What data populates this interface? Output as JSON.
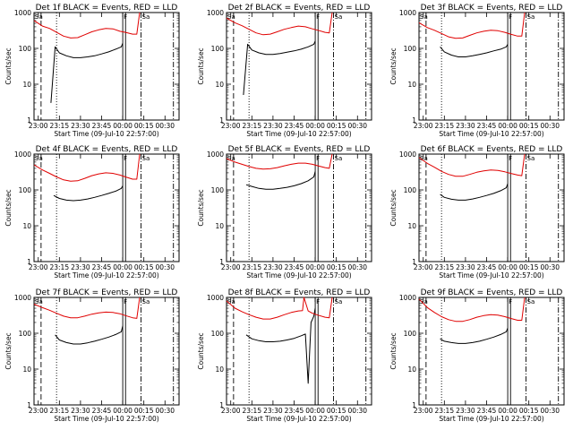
{
  "figure": {
    "background": "#ffffff",
    "event_color": "#000000",
    "lld_color": "#e00000"
  },
  "chart_data": [
    {
      "type": "line",
      "title": "Det 1f BLACK = Events, RED = LLD",
      "xlabel": "Start Time (09-Jul-10 22:57:00)",
      "ylabel": "Counts/sec",
      "x_ticks": [
        "23:00",
        "23:15",
        "23:30",
        "23:45",
        "00:00",
        "00:15",
        "00:30"
      ],
      "y_ticks": [
        "1",
        "10",
        "100",
        "1000"
      ],
      "y_scale": "log",
      "ylim": [
        1,
        1000
      ],
      "markers": [
        "Sa",
        "F",
        "Sa"
      ],
      "series": [
        {
          "name": "Events",
          "color": "#000000",
          "x": [
            "23:09",
            "23:12",
            "23:15",
            "23:20",
            "23:25",
            "23:30",
            "23:35",
            "23:40",
            "23:45",
            "23:50",
            "23:55",
            "23:59",
            "00:00"
          ],
          "values": [
            3,
            110,
            75,
            62,
            55,
            55,
            58,
            62,
            70,
            80,
            95,
            110,
            140
          ]
        },
        {
          "name": "LLD",
          "color": "#e00000",
          "x": [
            "22:57",
            "23:03",
            "23:08",
            "23:13",
            "23:18",
            "23:23",
            "23:28",
            "23:33",
            "23:38",
            "23:43",
            "23:48",
            "23:53",
            "23:58",
            "00:02",
            "00:07",
            "00:10",
            "00:12"
          ],
          "values": [
            600,
            420,
            360,
            280,
            220,
            195,
            200,
            240,
            290,
            330,
            360,
            350,
            300,
            280,
            250,
            250,
            1000
          ]
        }
      ]
    },
    {
      "type": "line",
      "title": "Det 2f BLACK = Events, RED = LLD",
      "xlabel": "Start Time (09-Jul-10 22:57:00)",
      "ylabel": "Counts/sec",
      "x_ticks": [
        "23:00",
        "23:15",
        "23:30",
        "23:45",
        "00:00",
        "00:15",
        "00:30"
      ],
      "y_ticks": [
        "1",
        "10",
        "100",
        "1000"
      ],
      "y_scale": "log",
      "ylim": [
        1,
        1000
      ],
      "markers": [
        "Sa",
        "F",
        "Sa"
      ],
      "series": [
        {
          "name": "Events",
          "color": "#000000",
          "x": [
            "23:09",
            "23:12",
            "23:15",
            "23:20",
            "23:25",
            "23:30",
            "23:35",
            "23:40",
            "23:45",
            "23:50",
            "23:55",
            "23:59",
            "00:00"
          ],
          "values": [
            5,
            130,
            90,
            75,
            68,
            68,
            72,
            78,
            85,
            95,
            110,
            130,
            160
          ]
        },
        {
          "name": "LLD",
          "color": "#e00000",
          "x": [
            "22:57",
            "23:03",
            "23:08",
            "23:13",
            "23:18",
            "23:23",
            "23:28",
            "23:33",
            "23:38",
            "23:43",
            "23:48",
            "23:53",
            "23:58",
            "00:02",
            "00:07",
            "00:10",
            "00:12"
          ],
          "values": [
            700,
            520,
            430,
            340,
            270,
            240,
            250,
            290,
            340,
            380,
            420,
            400,
            350,
            320,
            280,
            270,
            1000
          ]
        }
      ]
    },
    {
      "type": "line",
      "title": "Det 3f BLACK = Events, RED = LLD",
      "xlabel": "Start Time (09-Jul-10 22:57:00)",
      "ylabel": "Counts/sec",
      "x_ticks": [
        "23:00",
        "23:15",
        "23:30",
        "23:45",
        "00:00",
        "00:15",
        "00:30"
      ],
      "y_ticks": [
        "1",
        "10",
        "100",
        "1000"
      ],
      "y_scale": "log",
      "ylim": [
        1,
        1000
      ],
      "markers": [
        "Sa",
        "F",
        "Sa"
      ],
      "series": [
        {
          "name": "Events",
          "color": "#000000",
          "x": [
            "23:12",
            "23:15",
            "23:20",
            "23:25",
            "23:30",
            "23:35",
            "23:40",
            "23:45",
            "23:50",
            "23:55",
            "23:59",
            "00:00"
          ],
          "values": [
            110,
            80,
            65,
            58,
            58,
            62,
            68,
            75,
            85,
            95,
            110,
            130
          ]
        },
        {
          "name": "LLD",
          "color": "#e00000",
          "x": [
            "22:57",
            "23:03",
            "23:08",
            "23:13",
            "23:18",
            "23:23",
            "23:28",
            "23:33",
            "23:38",
            "23:43",
            "23:48",
            "23:53",
            "23:58",
            "00:02",
            "00:07",
            "00:10",
            "00:12"
          ],
          "values": [
            520,
            380,
            320,
            260,
            210,
            190,
            195,
            230,
            270,
            300,
            320,
            310,
            280,
            250,
            220,
            220,
            1000
          ]
        }
      ]
    },
    {
      "type": "line",
      "title": "Det 4f BLACK = Events, RED = LLD",
      "xlabel": "Start Time (09-Jul-10 22:57:00)",
      "ylabel": "Counts/sec",
      "x_ticks": [
        "23:00",
        "23:15",
        "23:30",
        "23:45",
        "00:00",
        "00:15",
        "00:30"
      ],
      "y_ticks": [
        "1",
        "10",
        "100",
        "1000"
      ],
      "y_scale": "log",
      "ylim": [
        1,
        1000
      ],
      "markers": [
        "Sa",
        "F",
        "Sa"
      ],
      "series": [
        {
          "name": "Events",
          "color": "#000000",
          "x": [
            "23:11",
            "23:15",
            "23:20",
            "23:25",
            "23:30",
            "23:35",
            "23:40",
            "23:45",
            "23:50",
            "23:55",
            "23:59",
            "00:00"
          ],
          "values": [
            70,
            58,
            52,
            50,
            52,
            56,
            62,
            70,
            80,
            92,
            110,
            130
          ]
        },
        {
          "name": "LLD",
          "color": "#e00000",
          "x": [
            "22:57",
            "23:03",
            "23:08",
            "23:13",
            "23:18",
            "23:23",
            "23:28",
            "23:33",
            "23:38",
            "23:43",
            "23:48",
            "23:53",
            "23:58",
            "00:02",
            "00:07",
            "00:10",
            "00:12"
          ],
          "values": [
            500,
            360,
            290,
            230,
            190,
            175,
            180,
            210,
            250,
            280,
            300,
            290,
            260,
            230,
            200,
            200,
            1000
          ]
        }
      ]
    },
    {
      "type": "line",
      "title": "Det 5f BLACK = Events, RED = LLD",
      "xlabel": "Start Time (09-Jul-10 22:57:00)",
      "ylabel": "Counts/sec",
      "x_ticks": [
        "23:00",
        "23:15",
        "23:30",
        "23:45",
        "00:00",
        "00:15",
        "00:30"
      ],
      "y_ticks": [
        "1",
        "10",
        "100",
        "1000"
      ],
      "y_scale": "log",
      "ylim": [
        1,
        1000
      ],
      "markers": [
        "Sa",
        "F",
        "Sa"
      ],
      "series": [
        {
          "name": "Events",
          "color": "#000000",
          "x": [
            "23:11",
            "23:15",
            "23:20",
            "23:25",
            "23:30",
            "23:35",
            "23:40",
            "23:45",
            "23:50",
            "23:55",
            "23:59",
            "00:00"
          ],
          "values": [
            140,
            125,
            110,
            105,
            105,
            110,
            118,
            130,
            150,
            180,
            230,
            330
          ]
        },
        {
          "name": "LLD",
          "color": "#e00000",
          "x": [
            "22:57",
            "23:03",
            "23:08",
            "23:13",
            "23:18",
            "23:23",
            "23:28",
            "23:33",
            "23:38",
            "23:43",
            "23:48",
            "23:53",
            "23:58",
            "00:02",
            "00:07",
            "00:10",
            "00:12"
          ],
          "values": [
            750,
            600,
            520,
            450,
            400,
            380,
            390,
            420,
            470,
            520,
            560,
            560,
            520,
            470,
            420,
            400,
            1000
          ]
        }
      ]
    },
    {
      "type": "line",
      "title": "Det 6f BLACK = Events, RED = LLD",
      "xlabel": "Start Time (09-Jul-10 22:57:00)",
      "ylabel": "Counts/sec",
      "x_ticks": [
        "23:00",
        "23:15",
        "23:30",
        "23:45",
        "00:00",
        "00:15",
        "00:30"
      ],
      "y_ticks": [
        "1",
        "10",
        "100",
        "1000"
      ],
      "y_scale": "log",
      "ylim": [
        1,
        1000
      ],
      "markers": [
        "Sa",
        "F",
        "Sa"
      ],
      "series": [
        {
          "name": "Events",
          "color": "#000000",
          "x": [
            "23:12",
            "23:15",
            "23:20",
            "23:25",
            "23:30",
            "23:35",
            "23:40",
            "23:45",
            "23:50",
            "23:55",
            "23:59",
            "00:00"
          ],
          "values": [
            75,
            62,
            55,
            52,
            52,
            56,
            62,
            70,
            80,
            95,
            115,
            150
          ]
        },
        {
          "name": "LLD",
          "color": "#e00000",
          "x": [
            "22:57",
            "23:03",
            "23:08",
            "23:13",
            "23:18",
            "23:23",
            "23:28",
            "23:33",
            "23:38",
            "23:43",
            "23:48",
            "23:53",
            "23:58",
            "00:02",
            "00:07",
            "00:10",
            "00:12"
          ],
          "values": [
            800,
            550,
            430,
            330,
            270,
            240,
            240,
            270,
            310,
            340,
            360,
            350,
            320,
            290,
            260,
            250,
            1000
          ]
        }
      ]
    },
    {
      "type": "line",
      "title": "Det 7f BLACK = Events, RED = LLD",
      "xlabel": "Start Time (09-Jul-10 22:57:00)",
      "ylabel": "Counts/sec",
      "x_ticks": [
        "23:00",
        "23:15",
        "23:30",
        "23:45",
        "00:00",
        "00:15",
        "00:30"
      ],
      "y_ticks": [
        "1",
        "10",
        "100",
        "1000"
      ],
      "y_scale": "log",
      "ylim": [
        1,
        1000
      ],
      "markers": [
        "Sa",
        "F",
        "Sa"
      ],
      "series": [
        {
          "name": "Events",
          "color": "#000000",
          "x": [
            "23:12",
            "23:15",
            "23:20",
            "23:25",
            "23:30",
            "23:35",
            "23:40",
            "23:45",
            "23:50",
            "23:55",
            "23:59",
            "00:00"
          ],
          "values": [
            90,
            65,
            55,
            50,
            50,
            54,
            60,
            68,
            78,
            92,
            110,
            160
          ]
        },
        {
          "name": "LLD",
          "color": "#e00000",
          "x": [
            "22:57",
            "23:03",
            "23:08",
            "23:13",
            "23:18",
            "23:23",
            "23:28",
            "23:33",
            "23:38",
            "23:43",
            "23:48",
            "23:53",
            "23:58",
            "00:02",
            "00:07",
            "00:10",
            "00:12"
          ],
          "values": [
            650,
            520,
            440,
            360,
            300,
            270,
            270,
            300,
            340,
            370,
            390,
            380,
            350,
            310,
            270,
            260,
            1000
          ]
        }
      ]
    },
    {
      "type": "line",
      "title": "Det 8f BLACK = Events, RED = LLD",
      "xlabel": "Start Time (09-Jul-10 22:57:00)",
      "ylabel": "Counts/sec",
      "x_ticks": [
        "23:00",
        "23:15",
        "23:30",
        "23:45",
        "00:00",
        "00:15",
        "00:30"
      ],
      "y_ticks": [
        "1",
        "10",
        "100",
        "1000"
      ],
      "y_scale": "log",
      "ylim": [
        1,
        1000
      ],
      "markers": [
        "Sa",
        "F",
        "Sa"
      ],
      "series": [
        {
          "name": "Events",
          "color": "#000000",
          "x": [
            "23:11",
            "23:15",
            "23:20",
            "23:25",
            "23:30",
            "23:35",
            "23:40",
            "23:45",
            "23:50",
            "23:53",
            "23:55",
            "23:57",
            "23:59",
            "00:00"
          ],
          "values": [
            90,
            70,
            62,
            58,
            58,
            60,
            65,
            72,
            85,
            95,
            4,
            200,
            300,
            500
          ]
        },
        {
          "name": "LLD",
          "color": "#e00000",
          "x": [
            "22:57",
            "23:03",
            "23:08",
            "23:13",
            "23:18",
            "23:23",
            "23:28",
            "23:33",
            "23:38",
            "23:43",
            "23:48",
            "23:51",
            "23:52",
            "23:55",
            "23:58",
            "00:02",
            "00:07",
            "00:10",
            "00:12"
          ],
          "values": [
            800,
            500,
            400,
            330,
            280,
            250,
            250,
            280,
            330,
            380,
            420,
            430,
            1000,
            420,
            360,
            320,
            280,
            270,
            1000
          ]
        }
      ]
    },
    {
      "type": "line",
      "title": "Det 9f BLACK = Events, RED = LLD",
      "xlabel": "Start Time (09-Jul-10 22:57:00)",
      "ylabel": "Counts/sec",
      "x_ticks": [
        "23:00",
        "23:15",
        "23:30",
        "23:45",
        "00:00",
        "00:15",
        "00:30"
      ],
      "y_ticks": [
        "1",
        "10",
        "100",
        "1000"
      ],
      "y_scale": "log",
      "ylim": [
        1,
        1000
      ],
      "markers": [
        "Sa",
        "F",
        "Sa"
      ],
      "series": [
        {
          "name": "Events",
          "color": "#000000",
          "x": [
            "23:12",
            "23:15",
            "23:20",
            "23:25",
            "23:30",
            "23:35",
            "23:40",
            "23:45",
            "23:50",
            "23:55",
            "23:59",
            "00:00"
          ],
          "values": [
            70,
            60,
            55,
            52,
            52,
            55,
            60,
            68,
            78,
            92,
            110,
            140
          ]
        },
        {
          "name": "LLD",
          "color": "#e00000",
          "x": [
            "22:57",
            "23:03",
            "23:08",
            "23:13",
            "23:18",
            "23:23",
            "23:28",
            "23:33",
            "23:38",
            "23:43",
            "23:48",
            "23:53",
            "23:58",
            "00:02",
            "00:07",
            "00:10",
            "00:12"
          ],
          "values": [
            900,
            520,
            380,
            290,
            240,
            215,
            215,
            240,
            280,
            310,
            330,
            320,
            290,
            260,
            230,
            230,
            1000
          ]
        }
      ]
    }
  ]
}
